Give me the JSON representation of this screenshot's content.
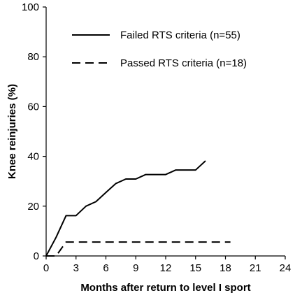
{
  "chart_data": {
    "type": "line",
    "title": "",
    "xlabel": "Months after return to level I sport",
    "ylabel": "Knee reinjuries (%)",
    "xlim": [
      0,
      24
    ],
    "ylim": [
      0,
      100
    ],
    "xticks": [
      "0",
      "3",
      "6",
      "9",
      "12",
      "15",
      "18",
      "21",
      "24"
    ],
    "yticks": [
      "0",
      "20",
      "40",
      "60",
      "80",
      "100"
    ],
    "grid": false,
    "legend_position": "top-right",
    "series": [
      {
        "name": "Failed RTS criteria (n=55)",
        "style": "solid",
        "color": "#000000",
        "x": [
          0,
          1,
          2,
          3,
          4,
          5,
          6,
          7,
          8,
          9,
          10,
          11,
          12,
          13,
          14,
          15,
          16
        ],
        "y": [
          0,
          7.5,
          16.2,
          16.2,
          20,
          21.8,
          25.5,
          29.1,
          30.9,
          30.9,
          32.7,
          32.7,
          32.7,
          34.5,
          34.5,
          34.5,
          38.2
        ]
      },
      {
        "name": "Passed RTS criteria (n=18)",
        "style": "dashed",
        "color": "#000000",
        "x": [
          0,
          1,
          2,
          18.5
        ],
        "y": [
          0,
          0,
          5.6,
          5.6
        ]
      }
    ]
  }
}
